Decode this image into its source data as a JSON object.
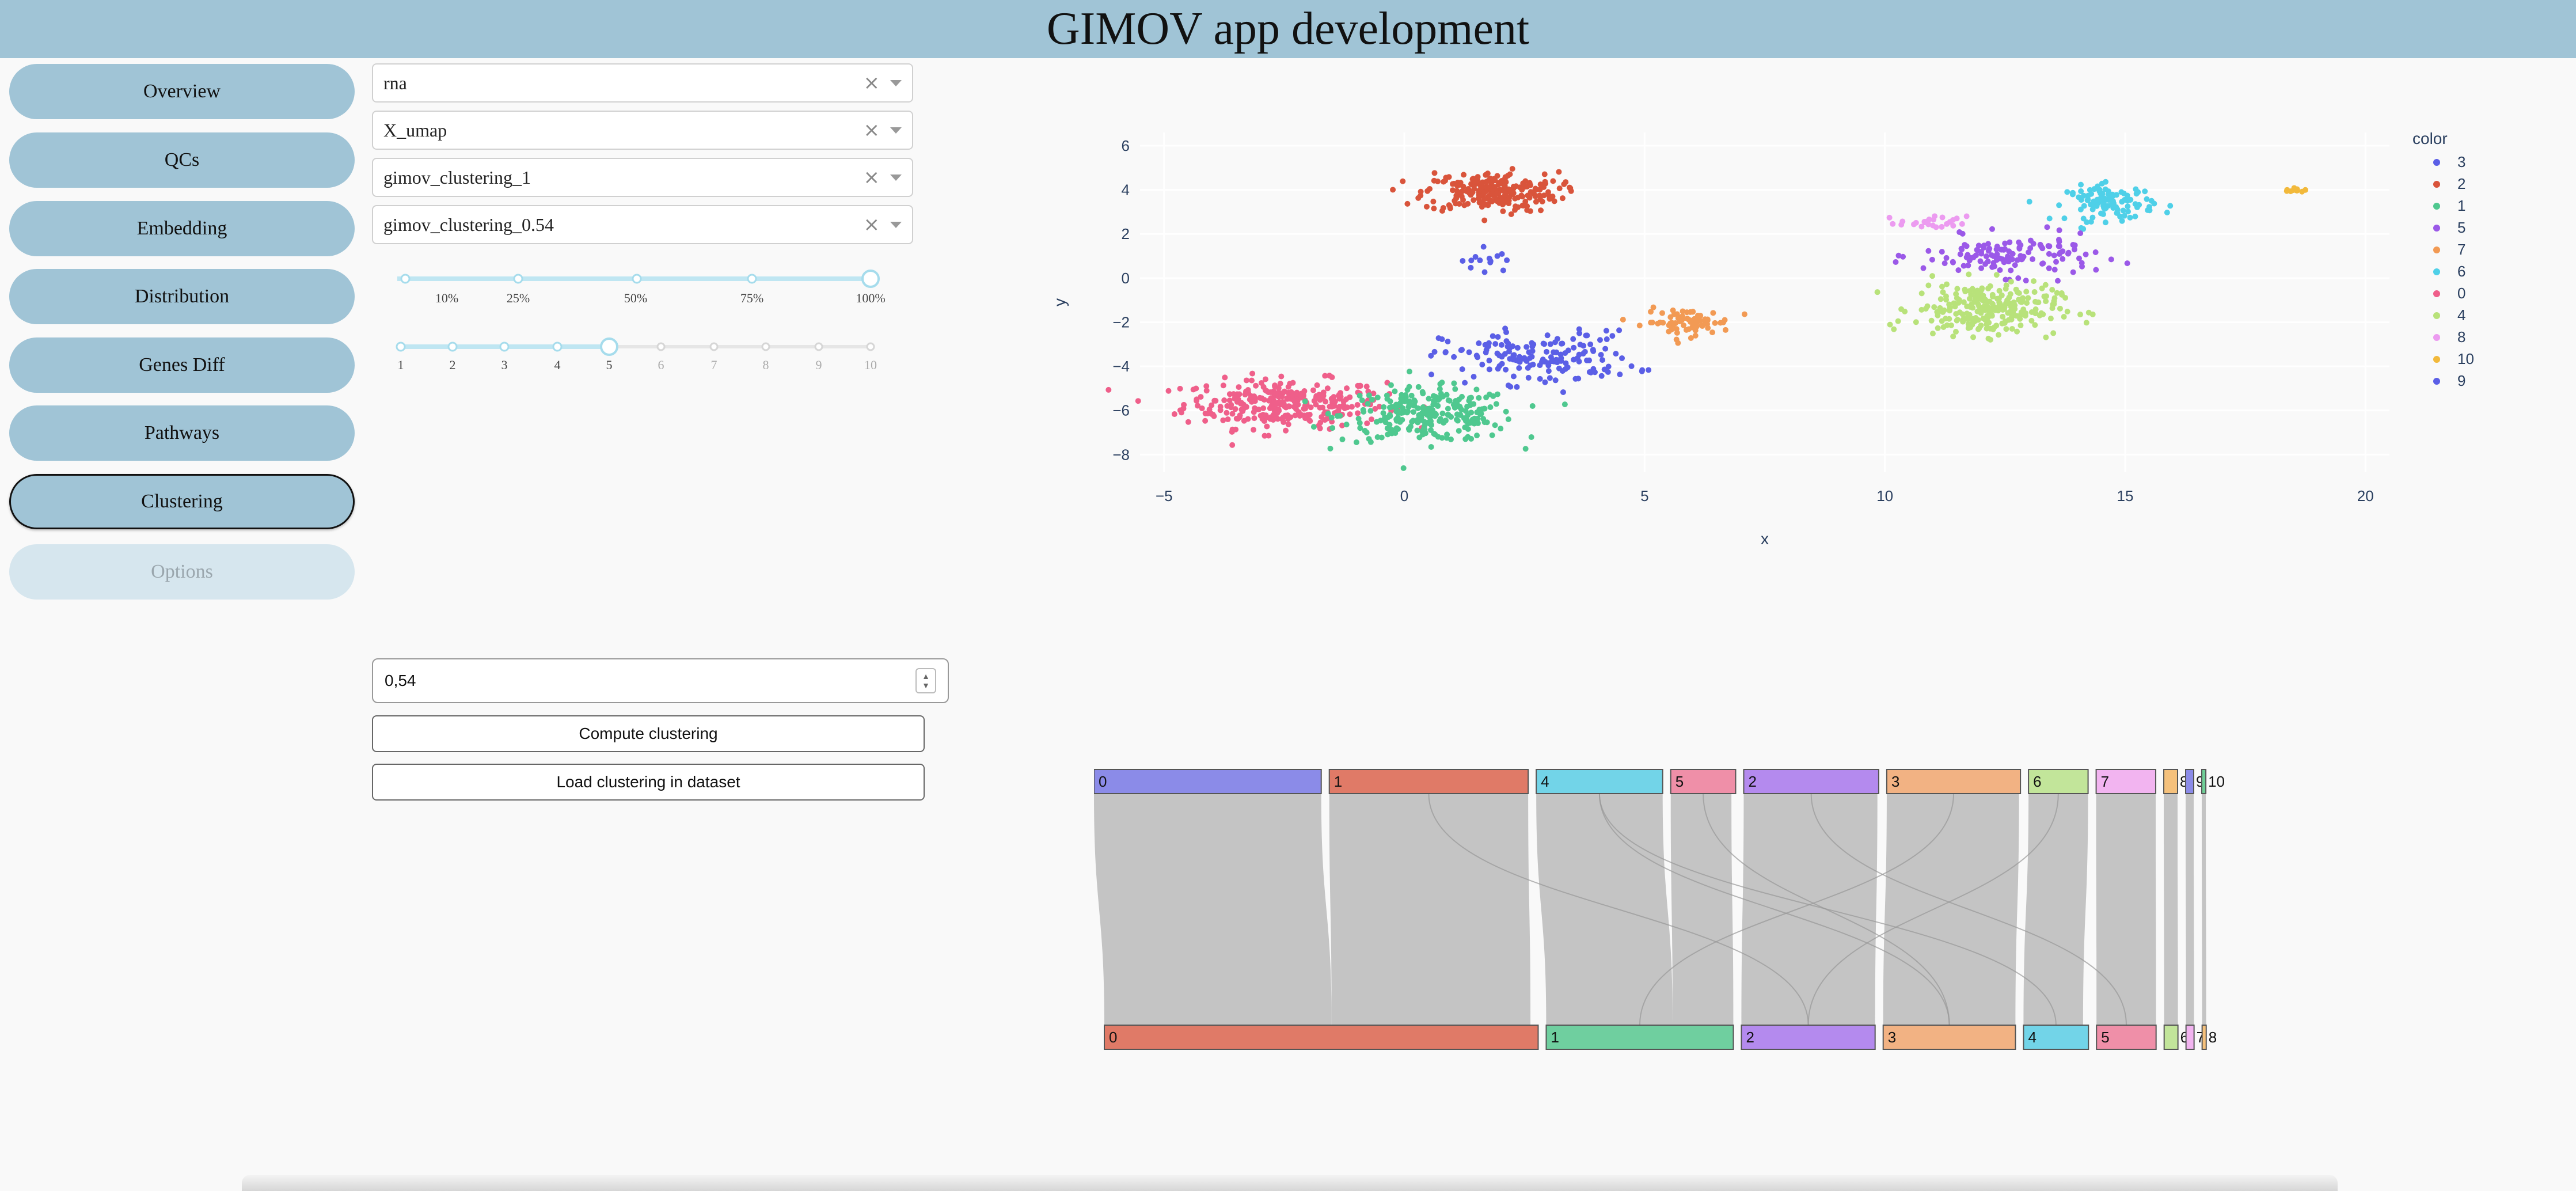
{
  "app": {
    "title": "GIMOV app development"
  },
  "nav": {
    "items": [
      {
        "label": "Overview",
        "state": "normal"
      },
      {
        "label": "QCs",
        "state": "normal"
      },
      {
        "label": "Embedding",
        "state": "normal"
      },
      {
        "label": "Distribution",
        "state": "normal"
      },
      {
        "label": "Genes Diff",
        "state": "normal"
      },
      {
        "label": "Pathways",
        "state": "normal"
      },
      {
        "label": "Clustering",
        "state": "active"
      },
      {
        "label": "Options",
        "state": "disabled"
      }
    ]
  },
  "controls": {
    "dropdowns": [
      {
        "value": "rna"
      },
      {
        "value": "X_umap"
      },
      {
        "value": "gimov_clustering_1"
      },
      {
        "value": "gimov_clustering_0.54"
      }
    ],
    "clear_glyph": "×",
    "slider1": {
      "marks": [
        "10%",
        "25%",
        "50%",
        "75%",
        "100%"
      ],
      "value": "100%"
    },
    "slider2": {
      "marks": [
        "1",
        "2",
        "3",
        "4",
        "5",
        "6",
        "7",
        "8",
        "9",
        "10"
      ],
      "value": "5"
    },
    "resolution_input": {
      "value": "0,54"
    },
    "compute_button": "Compute clustering",
    "load_button": "Load clustering in dataset"
  },
  "colors": {
    "header": "#a0c4d6",
    "nav": "#a0c4d6",
    "palette": {
      "0": "#ef5f8a",
      "1": "#4fc88f",
      "2": "#d9543b",
      "3": "#5b5fe6",
      "4": "#b8e27a",
      "5": "#9b59e8",
      "6": "#4fd0e8",
      "7": "#f29a54",
      "8": "#ec9bf0",
      "9": "#5b5fe6",
      "10": "#f2b93b"
    }
  },
  "chart_data": [
    {
      "type": "scatter",
      "xlabel": "x",
      "ylabel": "y",
      "xlim": [
        -5.5,
        20.5
      ],
      "ylim": [
        -8.8,
        6.6
      ],
      "x_ticks": [
        "−5",
        "0",
        "5",
        "10",
        "15",
        "20"
      ],
      "y_ticks": [
        "6",
        "4",
        "2",
        "0",
        "−2",
        "−4",
        "−6",
        "−8"
      ],
      "legend_title": "color",
      "legend": [
        "3",
        "2",
        "1",
        "5",
        "7",
        "6",
        "0",
        "4",
        "8",
        "10",
        "9"
      ],
      "clusters": [
        {
          "name": "0",
          "cx": -2.5,
          "cy": -5.7,
          "sx": 1.05,
          "sy": 0.55,
          "n": 300
        },
        {
          "name": "1",
          "cx": 0.5,
          "cy": -6.2,
          "sx": 0.9,
          "sy": 0.6,
          "n": 260
        },
        {
          "name": "2",
          "cx": 1.8,
          "cy": 3.9,
          "sx": 0.7,
          "sy": 0.45,
          "n": 240
        },
        {
          "name": "3",
          "cx": 1.7,
          "cy": 0.8,
          "sx": 0.25,
          "sy": 0.35,
          "n": 14
        },
        {
          "name": "3",
          "cx": 2.8,
          "cy": -3.6,
          "sx": 1.0,
          "sy": 0.6,
          "n": 160
        },
        {
          "name": "7",
          "cx": 5.9,
          "cy": -2.0,
          "sx": 0.45,
          "sy": 0.3,
          "n": 80
        },
        {
          "name": "6",
          "cx": 14.7,
          "cy": 3.4,
          "sx": 0.45,
          "sy": 0.4,
          "n": 110
        },
        {
          "name": "5",
          "cx": 12.6,
          "cy": 1.0,
          "sx": 0.9,
          "sy": 0.45,
          "n": 130
        },
        {
          "name": "4",
          "cx": 12.1,
          "cy": -1.4,
          "sx": 0.75,
          "sy": 0.6,
          "n": 260
        },
        {
          "name": "8",
          "cx": 11.0,
          "cy": 2.5,
          "sx": 0.35,
          "sy": 0.15,
          "n": 25
        },
        {
          "name": "10",
          "cx": 18.5,
          "cy": 4.0,
          "sx": 0.12,
          "sy": 0.06,
          "n": 10
        }
      ]
    },
    {
      "type": "sankey",
      "top_nodes": [
        {
          "label": "0",
          "w": 0.1778,
          "color": "#8b8be8"
        },
        {
          "label": "1",
          "w": 0.1556,
          "color": "#e07a67"
        },
        {
          "label": "4",
          "w": 0.0989,
          "color": "#72d4e8"
        },
        {
          "label": "5",
          "w": 0.0508,
          "color": "#ef8fa8"
        },
        {
          "label": "2",
          "w": 0.1056,
          "color": "#b48aee"
        },
        {
          "label": "3",
          "w": 0.1046,
          "color": "#f2b283"
        },
        {
          "label": "6",
          "w": 0.0466,
          "color": "#c2e59a"
        },
        {
          "label": "7",
          "w": 0.0466,
          "color": "#f2b4f0"
        },
        {
          "label": "8",
          "w": 0.0108,
          "color": "#f5c17c"
        },
        {
          "label": "9",
          "w": 0.0063,
          "color": "#8b8be8"
        },
        {
          "label": "10",
          "w": 0.0032,
          "color": "#6fcf97"
        }
      ],
      "bottom_nodes": [
        {
          "label": "0",
          "w": 0.3394,
          "color": "#e07a67"
        },
        {
          "label": "1",
          "w": 0.1464,
          "color": "#6fcf9f"
        },
        {
          "label": "2",
          "w": 0.1046,
          "color": "#b48aee"
        },
        {
          "label": "3",
          "w": 0.1035,
          "color": "#f2b283"
        },
        {
          "label": "4",
          "w": 0.0508,
          "color": "#72d4e8"
        },
        {
          "label": "5",
          "w": 0.0466,
          "color": "#ef8fa8"
        },
        {
          "label": "6",
          "w": 0.0108,
          "color": "#c2e59a"
        },
        {
          "label": "7",
          "w": 0.0063,
          "color": "#f2b4f0"
        },
        {
          "label": "8",
          "w": 0.0032,
          "color": "#f5c17c"
        }
      ]
    }
  ]
}
